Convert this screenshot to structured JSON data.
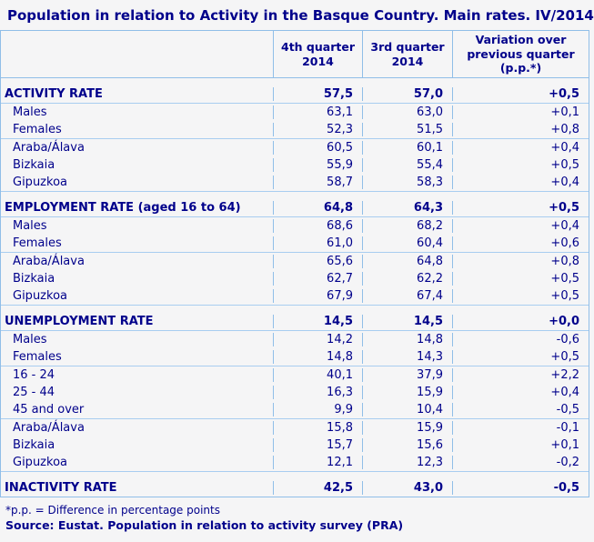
{
  "title": "Population in relation to Activity in the Basque Country. Main rates. IV/2014",
  "colors": {
    "text_navy": "#00008b",
    "border_blue": "#90bee8",
    "page_bg": "#f5f5f6"
  },
  "table": {
    "columns": {
      "col1": "",
      "col2": "4th quarter 2014",
      "col3": "3rd quarter 2014",
      "col4": "Variation over previous quarter (p.p.*)"
    },
    "rows": [
      {
        "type": "spacer"
      },
      {
        "type": "section",
        "label": "ACTIVITY RATE",
        "q4": "57,5",
        "q3": "57,0",
        "var": "+0,5",
        "line_below": true
      },
      {
        "type": "sub",
        "label": "Males",
        "q4": "63,1",
        "q3": "63,0",
        "var": "+0,1"
      },
      {
        "type": "sub",
        "label": "Females",
        "q4": "52,3",
        "q3": "51,5",
        "var": "+0,8",
        "line_below": true
      },
      {
        "type": "sub",
        "label": "Araba/Álava",
        "q4": "60,5",
        "q3": "60,1",
        "var": "+0,4"
      },
      {
        "type": "sub",
        "label": "Bizkaia",
        "q4": "55,9",
        "q3": "55,4",
        "var": "+0,5"
      },
      {
        "type": "sub",
        "label": "Gipuzkoa",
        "q4": "58,7",
        "q3": "58,3",
        "var": "+0,4",
        "line_below": true
      },
      {
        "type": "spacer"
      },
      {
        "type": "section",
        "label": "EMPLOYMENT RATE (aged 16 to 64)",
        "q4": "64,8",
        "q3": "64,3",
        "var": "+0,5",
        "line_below": true
      },
      {
        "type": "sub",
        "label": "Males",
        "q4": "68,6",
        "q3": "68,2",
        "var": "+0,4"
      },
      {
        "type": "sub",
        "label": "Females",
        "q4": "61,0",
        "q3": "60,4",
        "var": "+0,6",
        "line_below": true
      },
      {
        "type": "sub",
        "label": "Araba/Álava",
        "q4": "65,6",
        "q3": "64,8",
        "var": "+0,8"
      },
      {
        "type": "sub",
        "label": "Bizkaia",
        "q4": "62,7",
        "q3": "62,2",
        "var": "+0,5"
      },
      {
        "type": "sub",
        "label": "Gipuzkoa",
        "q4": "67,9",
        "q3": "67,4",
        "var": "+0,5",
        "line_below": true
      },
      {
        "type": "spacer"
      },
      {
        "type": "section",
        "label": "UNEMPLOYMENT RATE",
        "q4": "14,5",
        "q3": "14,5",
        "var": "+0,0",
        "line_below": true
      },
      {
        "type": "sub",
        "label": "Males",
        "q4": "14,2",
        "q3": "14,8",
        "var": "-0,6"
      },
      {
        "type": "sub",
        "label": "Females",
        "q4": "14,8",
        "q3": "14,3",
        "var": "+0,5",
        "line_below": true
      },
      {
        "type": "sub",
        "label": "16 - 24",
        "q4": "40,1",
        "q3": "37,9",
        "var": "+2,2"
      },
      {
        "type": "sub",
        "label": "25 - 44",
        "q4": "16,3",
        "q3": "15,9",
        "var": "+0,4"
      },
      {
        "type": "sub",
        "label": "45 and over",
        "q4": "9,9",
        "q3": "10,4",
        "var": "-0,5",
        "line_below": true
      },
      {
        "type": "sub",
        "label": "Araba/Álava",
        "q4": "15,8",
        "q3": "15,9",
        "var": "-0,1"
      },
      {
        "type": "sub",
        "label": "Bizkaia",
        "q4": "15,7",
        "q3": "15,6",
        "var": "+0,1"
      },
      {
        "type": "sub",
        "label": "Gipuzkoa",
        "q4": "12,1",
        "q3": "12,3",
        "var": "-0,2",
        "line_below": true
      },
      {
        "type": "spacer"
      },
      {
        "type": "section",
        "label": "INACTIVITY RATE",
        "q4": "42,5",
        "q3": "43,0",
        "var": "-0,5"
      }
    ]
  },
  "footnote": "*p.p. = Difference in percentage points",
  "source": "Source: Eustat. Population in relation to activity survey (PRA)"
}
